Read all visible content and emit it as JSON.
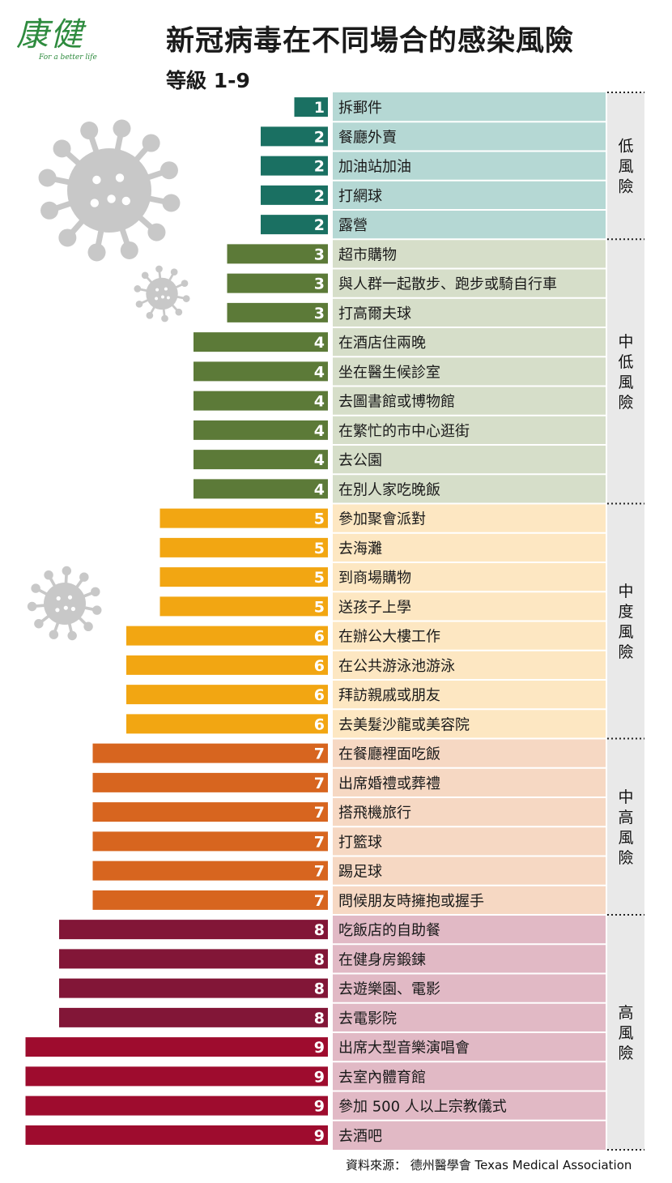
{
  "logo": {
    "brand": "康健",
    "slogan": "For a better life"
  },
  "title": "新冠病毒在不同場合的感染風險",
  "subtitle": "等級 1-9",
  "source": "資料來源： 德州醫學會 Texas Medical Association",
  "colors": {
    "levels": {
      "1": "#1a7062",
      "2": "#1a7062",
      "3": "#5c7a38",
      "4": "#5c7a38",
      "5": "#f2a612",
      "6": "#f2a612",
      "7": "#d7651f",
      "8": "#821637",
      "9": "#9e0c2e"
    },
    "zones": {
      "low": "#b5d8d4",
      "midlow": "#d6dec9",
      "mid": "#fde7c2",
      "midhigh": "#f6d8c3",
      "high": "#e1b9c5"
    },
    "sidebar": "#e9e9e9",
    "virus": "#c8c8c8"
  },
  "chart_data": {
    "type": "bar",
    "orientation": "horizontal",
    "xlim": [
      0,
      9
    ],
    "categories": [
      "拆郵件",
      "餐廳外賣",
      "加油站加油",
      "打網球",
      "露營",
      "超市購物",
      "與人群一起散步、跑步或騎自行車",
      "打高爾夫球",
      "在酒店住兩晚",
      "坐在醫生候診室",
      "去圖書館或博物館",
      "在繁忙的市中心逛街",
      "去公園",
      "在別人家吃晚飯",
      "參加聚會派對",
      "去海灘",
      "到商場購物",
      "送孩子上學",
      "在辦公大樓工作",
      "在公共游泳池游泳",
      "拜訪親戚或朋友",
      "去美髮沙龍或美容院",
      "在餐廳裡面吃飯",
      "出席婚禮或葬禮",
      "搭飛機旅行",
      "打籃球",
      "踢足球",
      "問候朋友時擁抱或握手",
      "吃飯店的自助餐",
      "在健身房鍛鍊",
      "去遊樂園、電影",
      "去電影院",
      "出席大型音樂演唱會",
      "去室內體育館",
      "參加 500 人以上宗教儀式",
      "去酒吧"
    ],
    "values": [
      1,
      2,
      2,
      2,
      2,
      3,
      3,
      3,
      4,
      4,
      4,
      4,
      4,
      4,
      5,
      5,
      5,
      5,
      6,
      6,
      6,
      6,
      7,
      7,
      7,
      7,
      7,
      7,
      8,
      8,
      8,
      8,
      9,
      9,
      9,
      9
    ],
    "zones": [
      {
        "label": "低風險",
        "key": "low",
        "start": 0,
        "end": 4
      },
      {
        "label": "中低風險",
        "key": "midlow",
        "start": 5,
        "end": 13
      },
      {
        "label": "中度風險",
        "key": "mid",
        "start": 14,
        "end": 21
      },
      {
        "label": "中高風險",
        "key": "midhigh",
        "start": 22,
        "end": 27
      },
      {
        "label": "高風險",
        "key": "high",
        "start": 28,
        "end": 35
      }
    ]
  }
}
